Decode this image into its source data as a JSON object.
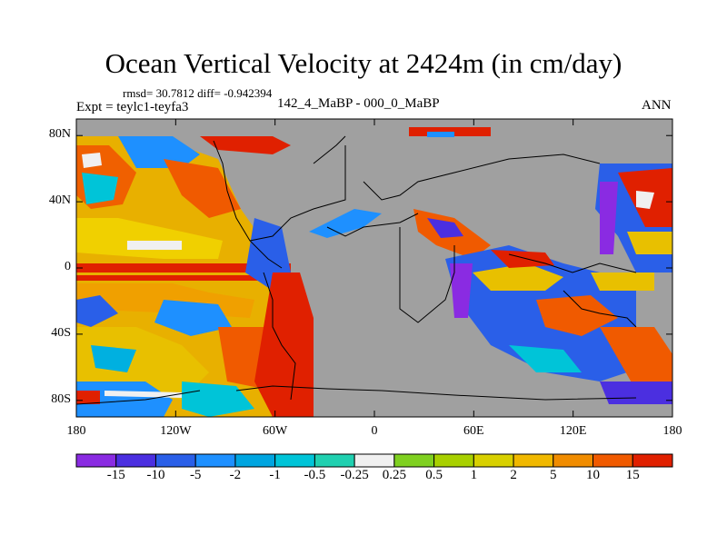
{
  "title": "Ocean Vertical Velocity at 2424m (in cm/day)",
  "stats": "rmsd= 30.7812 diff= -0.942394",
  "experiment": "Expt = teylc1-teyfa3",
  "period": "142_4_MaBP - 000_0_MaBP",
  "season": "ANN",
  "map": {
    "land_color": "#a0a0a0",
    "lat_ticks": [
      {
        "label": "80N",
        "lat": 80
      },
      {
        "label": "40N",
        "lat": 40
      },
      {
        "label": "0",
        "lat": 0
      },
      {
        "label": "40S",
        "lat": -40
      },
      {
        "label": "80S",
        "lat": -80
      }
    ],
    "lon_ticks": [
      {
        "label": "180",
        "lon": -180
      },
      {
        "label": "120W",
        "lon": -120
      },
      {
        "label": "60W",
        "lon": -60
      },
      {
        "label": "0",
        "lon": 0
      },
      {
        "label": "60E",
        "lon": 60
      },
      {
        "label": "120E",
        "lon": 120
      },
      {
        "label": "180",
        "lon": 180
      }
    ]
  },
  "colorbar": {
    "colors": [
      "#8a2be2",
      "#4b2fe0",
      "#2a5fe8",
      "#1e90ff",
      "#00a5e0",
      "#00c4d8",
      "#20d0b0",
      "#f0f0f0",
      "#7fd020",
      "#a8d000",
      "#d8d000",
      "#f0b800",
      "#f08c00",
      "#f05a00",
      "#e02000"
    ],
    "labels": [
      "-15",
      "-10",
      "-5",
      "-2",
      "-1",
      "-0.5",
      "-0.25",
      "0.25",
      "0.5",
      "1",
      "2",
      "5",
      "10",
      "15"
    ]
  }
}
